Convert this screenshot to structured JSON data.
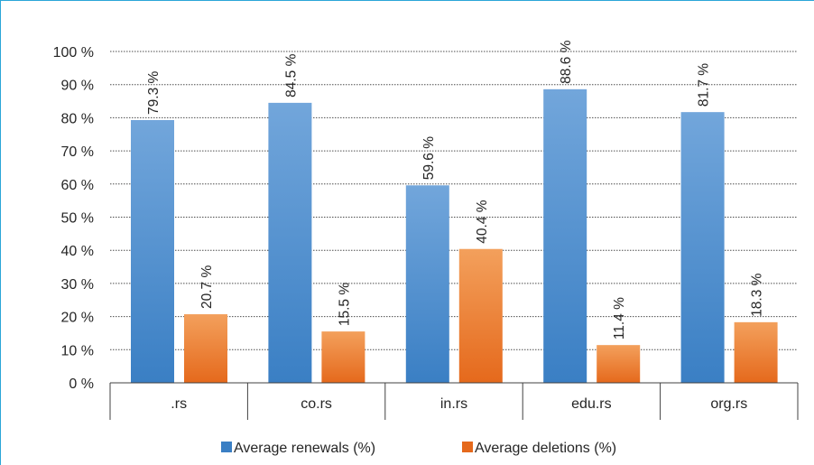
{
  "chart_data": {
    "type": "bar",
    "categories": [
      ".rs",
      "co.rs",
      "in.rs",
      "edu.rs",
      "org.rs"
    ],
    "series": [
      {
        "name": "Average renewals (%)",
        "values": [
          79.3,
          84.5,
          59.6,
          88.6,
          81.7
        ],
        "labels": [
          "79.3 %",
          "84.5 %",
          "59.6 %",
          "88.6 %",
          "81.7 %"
        ]
      },
      {
        "name": "Average deletions (%)",
        "values": [
          20.7,
          15.5,
          40.4,
          11.4,
          18.3
        ],
        "labels": [
          "20.7 %",
          "15.5 %",
          "40.4 %",
          "11.4 %",
          "18.3 %"
        ]
      }
    ],
    "ylim": [
      0,
      100
    ],
    "yticks": [
      "0 %",
      "10 %",
      "20 %",
      "30 %",
      "40 %",
      "50 %",
      "60 %",
      "70 %",
      "80 %",
      "90 %",
      "100 %"
    ],
    "grid": true,
    "legend_position": "bottom",
    "colors": {
      "renewals_top": "#72a6db",
      "renewals_bottom": "#3a7fc4",
      "deletions_top": "#f3a05c",
      "deletions_bottom": "#e5691c",
      "border": "#2ba6d8"
    }
  }
}
